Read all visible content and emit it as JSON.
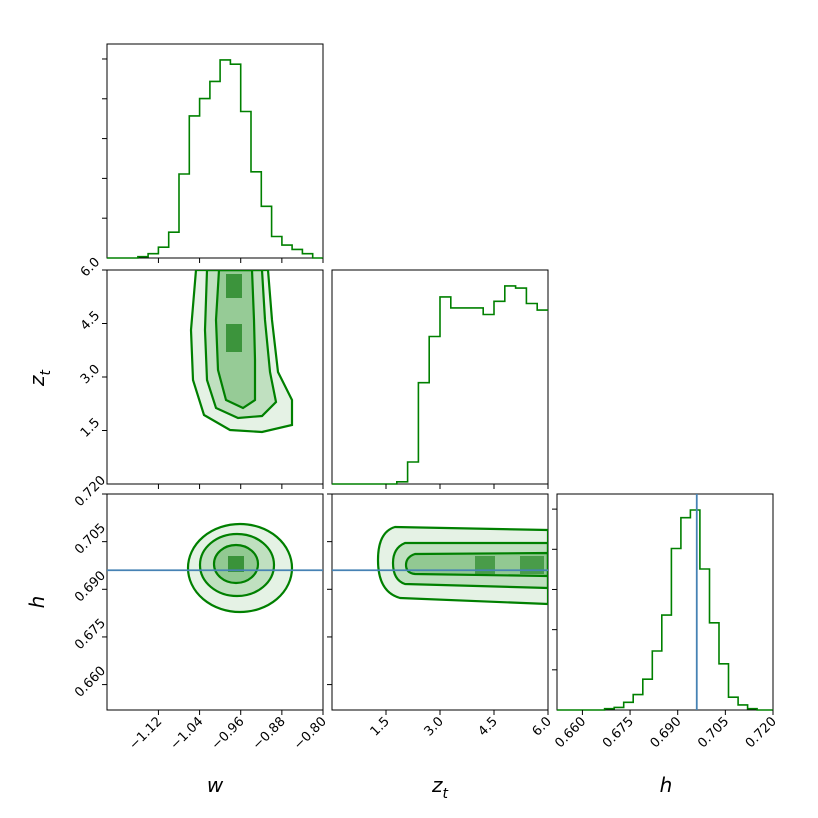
{
  "colors": {
    "samples": "#008000",
    "truth": "#4682b4",
    "frame": "#000000"
  },
  "chart_data": [
    {
      "type": "histogram",
      "panel": "w-marginal",
      "x_range": [
        -1.22,
        -0.8
      ],
      "bin_edges": [
        -1.22,
        -1.2,
        -1.18,
        -1.16,
        -1.14,
        -1.12,
        -1.1,
        -1.08,
        -1.06,
        -1.04,
        -1.02,
        -1.0,
        -0.98,
        -0.96,
        -0.94,
        -0.92,
        -0.9,
        -0.88,
        -0.86,
        -0.84,
        -0.82,
        -0.8
      ],
      "values": [
        0,
        0,
        0,
        0.3,
        1,
        2.5,
        6,
        19.5,
        33,
        37,
        41,
        46,
        45,
        34,
        20,
        12,
        5,
        3,
        2,
        1,
        0
      ]
    },
    {
      "type": "histogram",
      "panel": "zt-marginal",
      "x_range": [
        0.0,
        6.0
      ],
      "bin_edges": [
        0.0,
        0.3,
        0.6,
        0.9,
        1.2,
        1.5,
        1.8,
        2.1,
        2.4,
        2.7,
        3.0,
        3.3,
        3.6,
        3.9,
        4.2,
        4.5,
        4.8,
        5.1,
        5.4,
        5.7,
        6.0
      ],
      "values": [
        0,
        0,
        0,
        0,
        0,
        0,
        1,
        10,
        46,
        67,
        85,
        80,
        80,
        80,
        77,
        83,
        90,
        89,
        82,
        79
      ]
    },
    {
      "type": "histogram",
      "panel": "h-marginal",
      "x_range": [
        0.652,
        0.72
      ],
      "bin_edges": [
        0.652,
        0.655,
        0.658,
        0.661,
        0.664,
        0.667,
        0.67,
        0.673,
        0.676,
        0.679,
        0.682,
        0.685,
        0.688,
        0.691,
        0.694,
        0.697,
        0.7,
        0.703,
        0.706,
        0.709,
        0.712,
        0.715,
        0.718,
        0.72
      ],
      "values": [
        0,
        0,
        0,
        0,
        0,
        0.5,
        1,
        3,
        6,
        12,
        23,
        37,
        63,
        75,
        78,
        55,
        34,
        18,
        5,
        2,
        0.5,
        0,
        0
      ],
      "truth": 0.696
    },
    {
      "type": "contour",
      "panel": "w-zt",
      "x_range": [
        -1.22,
        -0.8
      ],
      "y_range": [
        0.0,
        6.0
      ],
      "xlabel": "w",
      "ylabel": "z_t",
      "x_ticks": [
        "−1.12",
        "−1.04",
        "−0.96",
        "−0.88",
        "−0.80"
      ],
      "x_tick_values": [
        -1.12,
        -1.04,
        -0.96,
        -0.88,
        -0.8
      ],
      "y_ticks": [
        "1.5",
        "3.0",
        "4.5",
        "6.0"
      ],
      "y_tick_values": [
        1.5,
        3.0,
        4.5,
        6.0
      ]
    },
    {
      "type": "contour",
      "panel": "w-h",
      "x_range": [
        -1.22,
        -0.8
      ],
      "y_range": [
        0.652,
        0.72
      ],
      "xlabel": "w",
      "ylabel": "h",
      "y_ticks": [
        "0.660",
        "0.675",
        "0.690",
        "0.705",
        "0.720"
      ],
      "y_tick_values": [
        0.66,
        0.675,
        0.69,
        0.705,
        0.72
      ],
      "truth_h": 0.696
    },
    {
      "type": "contour",
      "panel": "zt-h",
      "x_range": [
        0.0,
        6.0
      ],
      "y_range": [
        0.652,
        0.72
      ],
      "xlabel": "z_t",
      "x_ticks": [
        "1.5",
        "3.0",
        "4.5",
        "6.0"
      ],
      "x_tick_values": [
        1.5,
        3.0,
        4.5,
        6.0
      ],
      "truth_h": 0.696
    },
    {
      "type": "axis",
      "panel": "h-axis",
      "x_range": [
        0.652,
        0.72
      ],
      "xlabel": "h",
      "x_ticks": [
        "0.660",
        "0.675",
        "0.690",
        "0.705",
        "0.720"
      ],
      "x_tick_values": [
        0.66,
        0.675,
        0.69,
        0.705,
        0.72
      ]
    }
  ],
  "labels": {
    "w": "w",
    "z": "z",
    "t": "t",
    "h": "h"
  }
}
